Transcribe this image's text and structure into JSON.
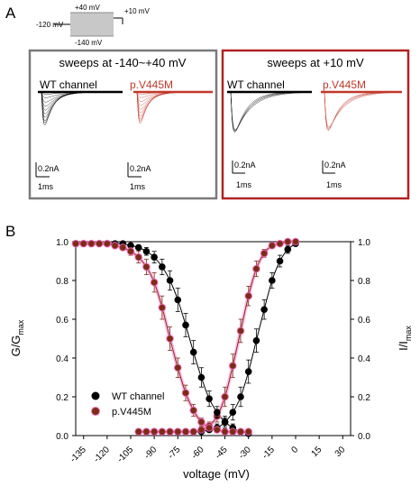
{
  "panel_a": {
    "label": "A",
    "protocol": {
      "hold_label": "-120 mV",
      "top_label": "+40 mV",
      "bottom_label": "-140 mV",
      "test_label": "+10 mV"
    },
    "box_left": {
      "title": "sweeps at -140~+40 mV",
      "wt_label": "WT channel",
      "mut_label": "p.V445M",
      "scale_wt_current": "0.2nA",
      "scale_wt_time": "1ms",
      "scale_mut_current": "0.2nA",
      "scale_mut_time": "1ms"
    },
    "box_right": {
      "title": "sweeps at +10 mV",
      "wt_label": "WT channel",
      "mut_label": "p.V445M",
      "scale_wt_current": "0.2nA",
      "scale_wt_time": "1ms",
      "scale_mut_current": "0.2nA",
      "scale_mut_time": "1ms"
    },
    "colors": {
      "wt": "#000000",
      "mut": "#c0392b",
      "left_border": "#7a7a7a",
      "right_border": "#b22222"
    }
  },
  "panel_b": {
    "label": "B",
    "y_left_label": "G/G",
    "y_left_sub": "max",
    "y_right_label": "I/I",
    "y_right_sub": "max",
    "colors": {
      "wt": "#000000",
      "mut": "#7b2d14",
      "mut_glow": "#ff66cc"
    }
  },
  "chart_data": {
    "type": "scatter",
    "xlabel": "voltage (mV)",
    "xlim": [
      -140,
      35
    ],
    "ylim": [
      0,
      1.0
    ],
    "x_ticks": [
      -135,
      -120,
      -105,
      -90,
      -75,
      -60,
      -45,
      -30,
      -15,
      0,
      15,
      30
    ],
    "y_ticks": [
      0.0,
      0.2,
      0.4,
      0.6,
      0.8,
      1.0
    ],
    "y_tick_labels": [
      "0.0",
      "0.2",
      "0.4",
      "0.6",
      "0.8",
      "1.0"
    ],
    "series": [
      {
        "name": "WT channel",
        "curve": "activation",
        "x": [
          -100,
          -95,
          -90,
          -85,
          -80,
          -75,
          -70,
          -65,
          -60,
          -55,
          -50,
          -45,
          -40,
          -35,
          -30,
          -25,
          -20,
          -15,
          -10,
          -5,
          0
        ],
        "y": [
          0.02,
          0.02,
          0.02,
          0.02,
          0.02,
          0.02,
          0.02,
          0.02,
          0.02,
          0.03,
          0.04,
          0.07,
          0.12,
          0.2,
          0.33,
          0.49,
          0.65,
          0.8,
          0.9,
          0.96,
          0.99
        ],
        "err": [
          0,
          0,
          0,
          0,
          0,
          0,
          0,
          0,
          0,
          0.01,
          0.02,
          0.03,
          0.04,
          0.05,
          0.06,
          0.06,
          0.05,
          0.04,
          0.03,
          0.02,
          0.01
        ]
      },
      {
        "name": "p.V445M",
        "curve": "activation",
        "x": [
          -100,
          -95,
          -90,
          -85,
          -80,
          -75,
          -70,
          -65,
          -60,
          -55,
          -50,
          -45,
          -40,
          -35,
          -30,
          -25,
          -20,
          -15,
          -10,
          -5,
          0
        ],
        "y": [
          0.02,
          0.02,
          0.02,
          0.02,
          0.02,
          0.02,
          0.02,
          0.02,
          0.03,
          0.05,
          0.1,
          0.2,
          0.36,
          0.54,
          0.72,
          0.86,
          0.94,
          0.98,
          0.99,
          1.0,
          1.0
        ],
        "err": [
          0,
          0,
          0,
          0,
          0,
          0,
          0,
          0,
          0.01,
          0.02,
          0.03,
          0.05,
          0.06,
          0.06,
          0.05,
          0.04,
          0.02,
          0.01,
          0.01,
          0,
          0
        ]
      },
      {
        "name": "WT channel",
        "curve": "inactivation",
        "x": [
          -140,
          -135,
          -130,
          -125,
          -120,
          -115,
          -110,
          -105,
          -100,
          -95,
          -90,
          -85,
          -80,
          -75,
          -70,
          -65,
          -60,
          -55,
          -50,
          -45,
          -40,
          -35,
          -30
        ],
        "y": [
          0.99,
          0.99,
          0.99,
          0.99,
          0.99,
          0.99,
          0.99,
          0.98,
          0.97,
          0.95,
          0.92,
          0.87,
          0.8,
          0.7,
          0.57,
          0.43,
          0.3,
          0.19,
          0.12,
          0.07,
          0.04,
          0.02,
          0.01
        ],
        "err": [
          0,
          0,
          0,
          0,
          0,
          0,
          0,
          0.01,
          0.01,
          0.02,
          0.03,
          0.04,
          0.05,
          0.06,
          0.06,
          0.06,
          0.05,
          0.04,
          0.03,
          0.02,
          0.02,
          0.01,
          0.01
        ]
      },
      {
        "name": "p.V445M",
        "curve": "inactivation",
        "x": [
          -140,
          -135,
          -130,
          -125,
          -120,
          -115,
          -110,
          -105,
          -100,
          -95,
          -90,
          -85,
          -80,
          -75,
          -70,
          -65,
          -60,
          -55,
          -50,
          -45,
          -40,
          -35,
          -30
        ],
        "y": [
          0.99,
          0.99,
          0.99,
          0.99,
          0.99,
          0.98,
          0.97,
          0.95,
          0.92,
          0.87,
          0.79,
          0.66,
          0.5,
          0.35,
          0.22,
          0.13,
          0.07,
          0.04,
          0.03,
          0.02,
          0.02,
          0.02,
          0.02
        ],
        "err": [
          0,
          0,
          0,
          0,
          0,
          0.01,
          0.01,
          0.02,
          0.03,
          0.04,
          0.05,
          0.06,
          0.06,
          0.05,
          0.04,
          0.03,
          0.02,
          0.01,
          0.01,
          0.01,
          0,
          0,
          0
        ]
      }
    ],
    "legend": {
      "position": "bottom-left",
      "entries": [
        "WT channel",
        "p.V445M"
      ]
    }
  }
}
